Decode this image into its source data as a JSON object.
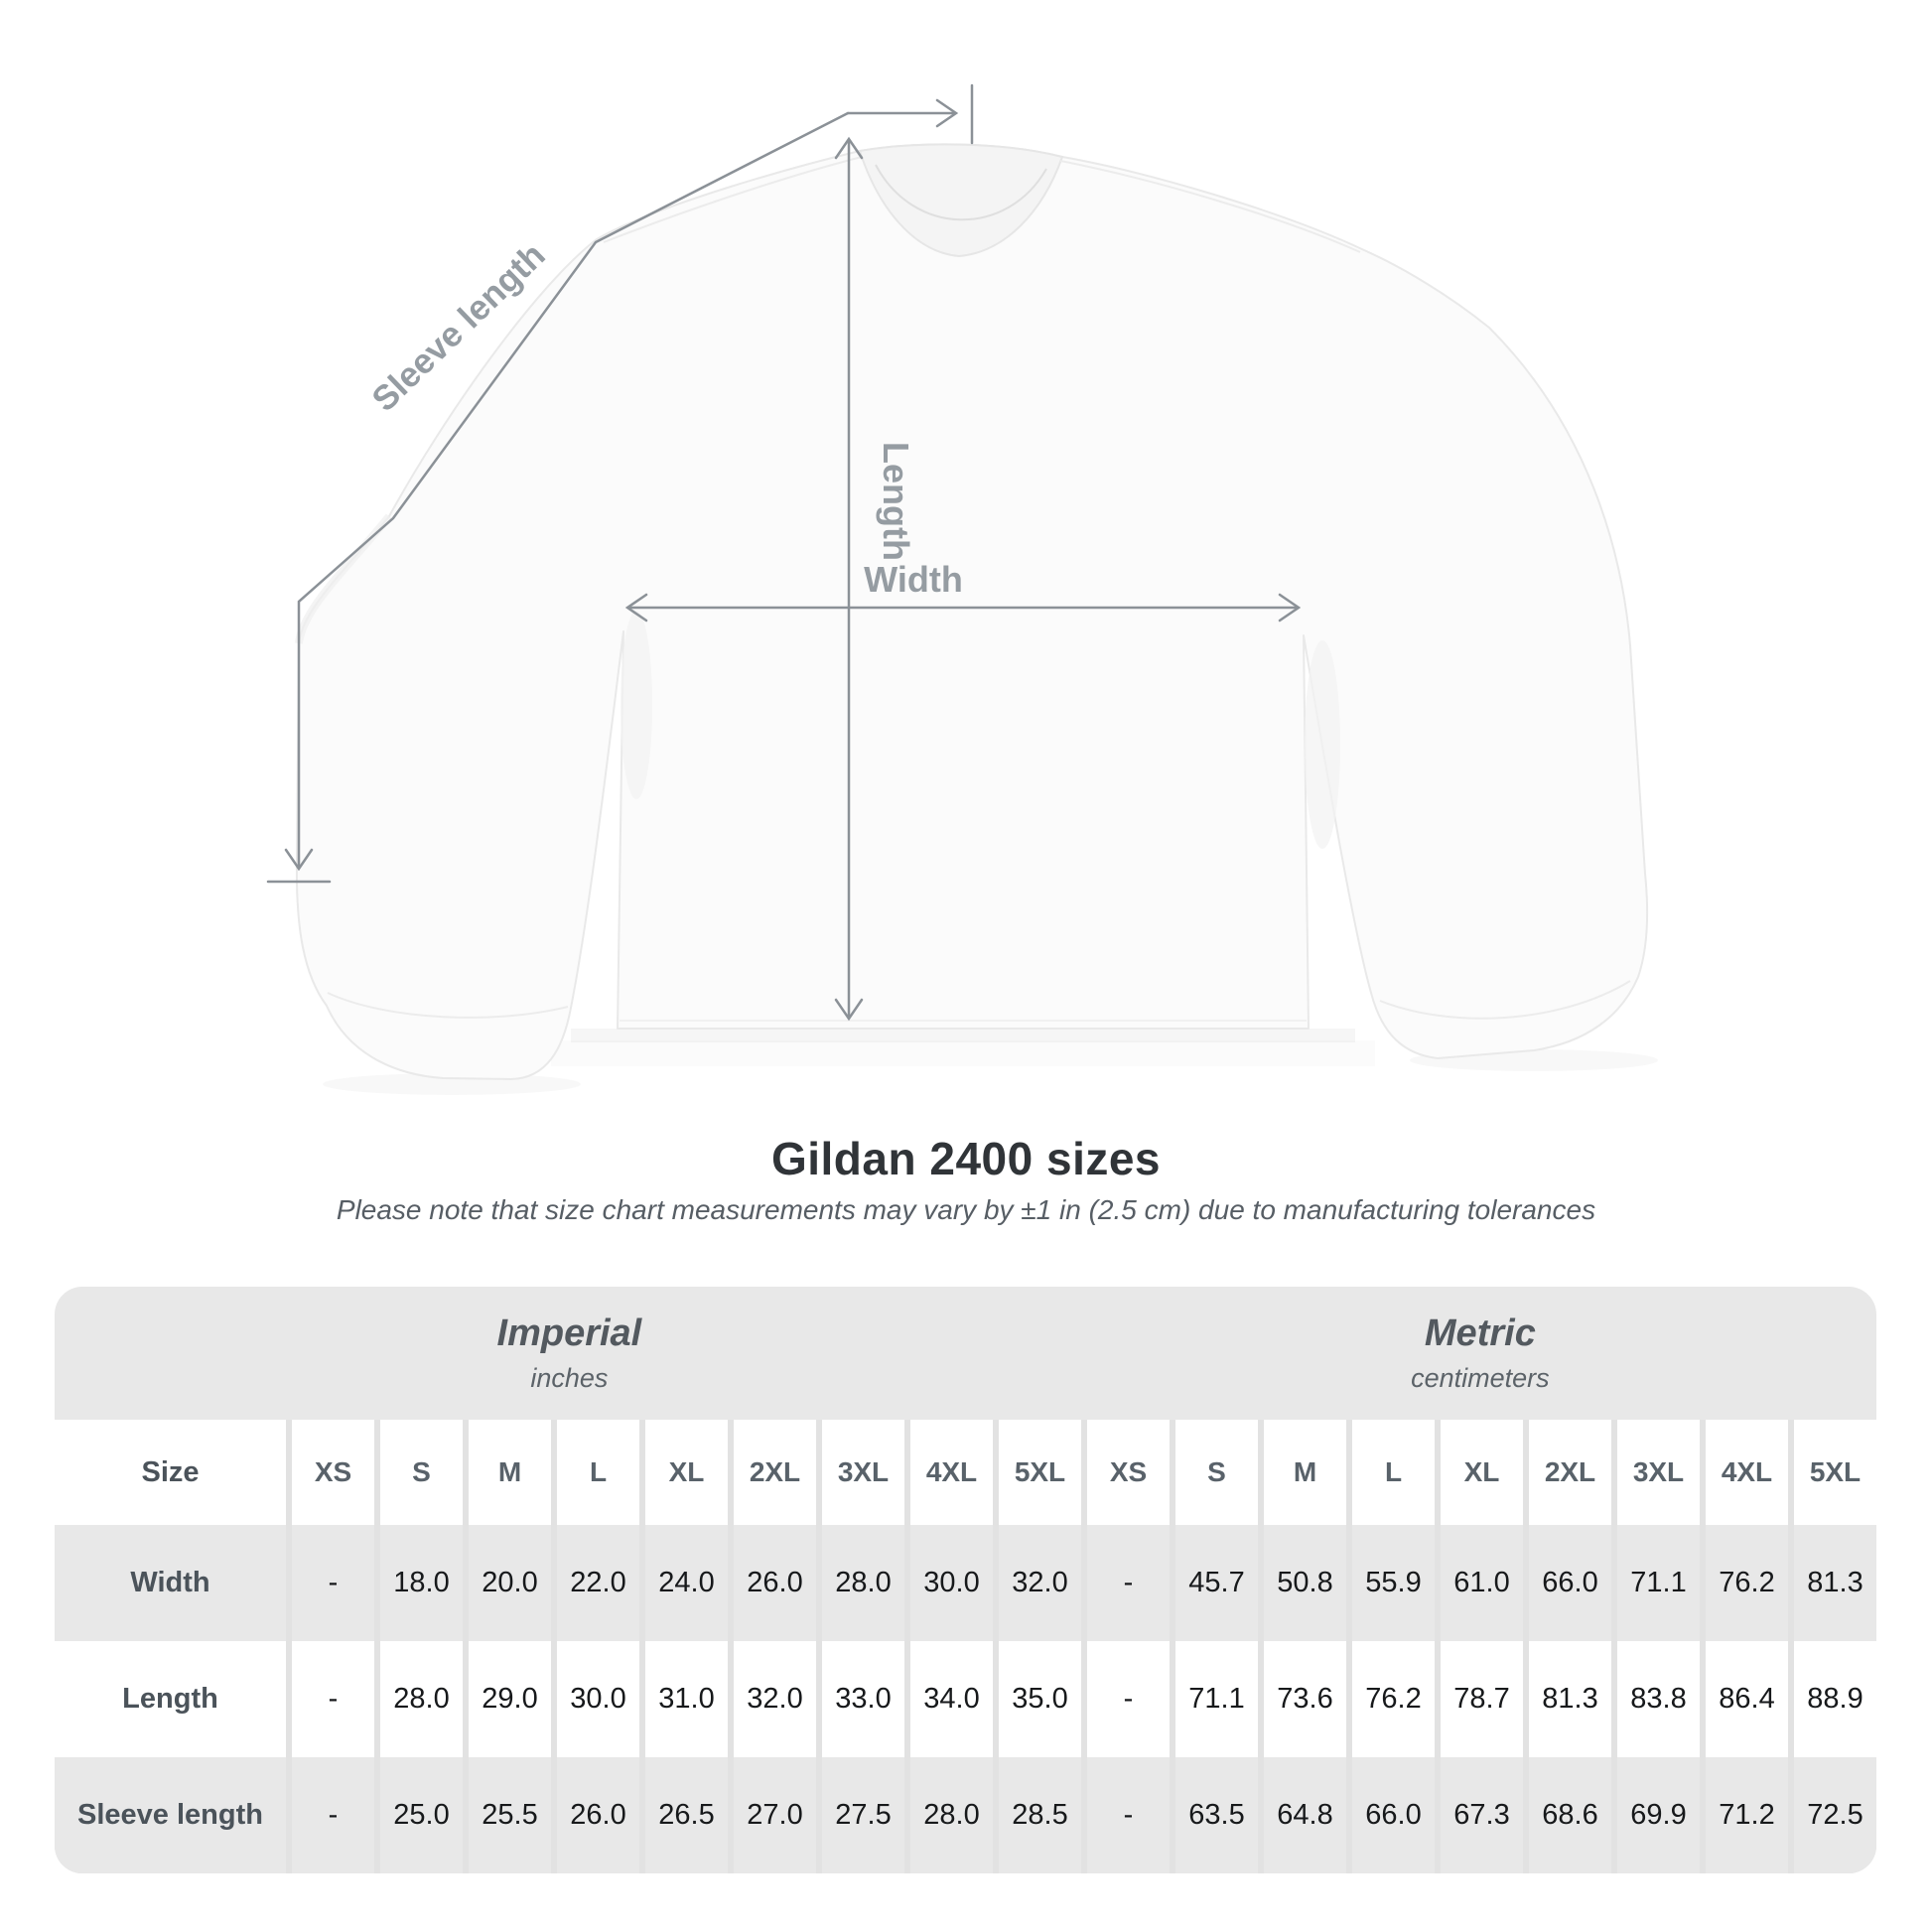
{
  "diagram": {
    "labels": {
      "sleeve_length": "Sleeve length",
      "length": "Length",
      "width": "Width"
    }
  },
  "heading": {
    "title": "Gildan 2400 sizes",
    "subtitle": "Please note that size chart measurements may vary by ±1 in (2.5 cm) due to manufacturing tolerances"
  },
  "size_chart": {
    "groups": [
      {
        "title": "Imperial",
        "unit": "inches"
      },
      {
        "title": "Metric",
        "unit": "centimeters"
      }
    ],
    "size_column_header": "Size",
    "sizes": [
      "XS",
      "S",
      "M",
      "L",
      "XL",
      "2XL",
      "3XL",
      "4XL",
      "5XL"
    ],
    "rows": [
      {
        "label": "Width",
        "imperial": [
          "-",
          "18.0",
          "20.0",
          "22.0",
          "24.0",
          "26.0",
          "28.0",
          "30.0",
          "32.0"
        ],
        "metric": [
          "-",
          "45.7",
          "50.8",
          "55.9",
          "61.0",
          "66.0",
          "71.1",
          "76.2",
          "81.3"
        ]
      },
      {
        "label": "Length",
        "imperial": [
          "-",
          "28.0",
          "29.0",
          "30.0",
          "31.0",
          "32.0",
          "33.0",
          "34.0",
          "35.0"
        ],
        "metric": [
          "-",
          "71.1",
          "73.6",
          "76.2",
          "78.7",
          "81.3",
          "83.8",
          "86.4",
          "88.9"
        ]
      },
      {
        "label": "Sleeve length",
        "imperial": [
          "-",
          "25.0",
          "25.5",
          "26.0",
          "26.5",
          "27.0",
          "27.5",
          "28.0",
          "28.5"
        ],
        "metric": [
          "-",
          "63.5",
          "64.8",
          "66.0",
          "67.3",
          "68.6",
          "69.9",
          "71.2",
          "72.5"
        ]
      }
    ]
  },
  "chart_data": {
    "type": "table",
    "title": "Gildan 2400 sizes",
    "note": "Please note that size chart measurements may vary by ±1 in (2.5 cm) due to manufacturing tolerances",
    "column_groups": [
      {
        "label": "Imperial",
        "unit": "inches",
        "span": 9
      },
      {
        "label": "Metric",
        "unit": "centimeters",
        "span": 9
      }
    ],
    "columns": [
      "Size",
      "XS",
      "S",
      "M",
      "L",
      "XL",
      "2XL",
      "3XL",
      "4XL",
      "5XL",
      "XS",
      "S",
      "M",
      "L",
      "XL",
      "2XL",
      "3XL",
      "4XL",
      "5XL"
    ],
    "rows": [
      [
        "Width",
        null,
        18.0,
        20.0,
        22.0,
        24.0,
        26.0,
        28.0,
        30.0,
        32.0,
        null,
        45.7,
        50.8,
        55.9,
        61.0,
        66.0,
        71.1,
        76.2,
        81.3
      ],
      [
        "Length",
        null,
        28.0,
        29.0,
        30.0,
        31.0,
        32.0,
        33.0,
        34.0,
        35.0,
        null,
        71.1,
        73.6,
        76.2,
        78.7,
        81.3,
        83.8,
        86.4,
        88.9
      ],
      [
        "Sleeve length",
        null,
        25.0,
        25.5,
        26.0,
        26.5,
        27.0,
        27.5,
        28.0,
        28.5,
        null,
        63.5,
        64.8,
        66.0,
        67.3,
        68.6,
        69.9,
        71.2,
        72.5
      ]
    ],
    "measurement_annotations": [
      "Sleeve length",
      "Length",
      "Width"
    ]
  },
  "colors": {
    "annotation_gray": "#8b9197",
    "diagram_label_gray": "#959ca2",
    "table_band_gray": "#e8e8e8",
    "separator_gray": "#e2e2e2",
    "title_text": "#303438",
    "header_text": "#59626a",
    "row_label_text": "#4b535a",
    "value_text": "#17191b",
    "shirt_fill": "#fbfbfb"
  }
}
